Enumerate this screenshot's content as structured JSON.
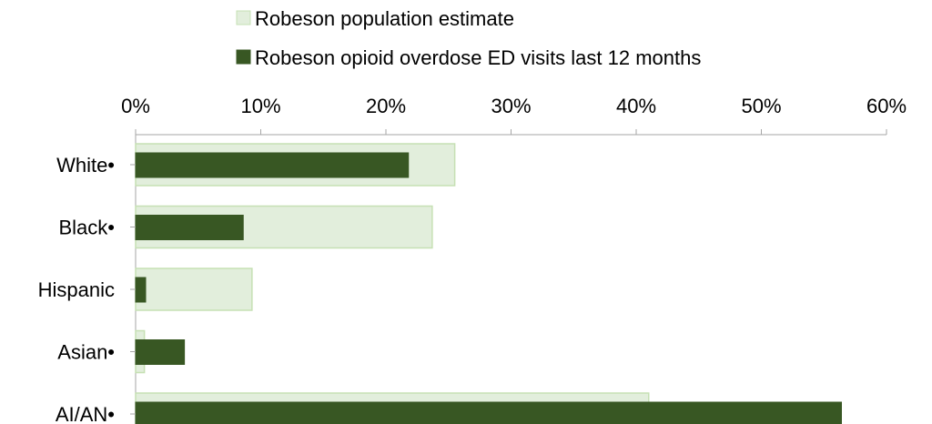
{
  "chart_data": {
    "type": "bar",
    "orientation": "horizontal",
    "categories": [
      "White•",
      "Black•",
      "Hispanic",
      "Asian•",
      "AI/AN•"
    ],
    "series": [
      {
        "name": "Robeson population estimate",
        "color": "#e2eedc",
        "stroke": "#c6e0b4",
        "values": [
          25.5,
          23.7,
          9.3,
          0.7,
          41.0
        ]
      },
      {
        "name": "Robeson opioid overdose ED visits last 12 months",
        "color": "#385723",
        "stroke": "#385723",
        "values": [
          21.8,
          8.6,
          0.8,
          3.9,
          56.4
        ]
      }
    ],
    "xlim": [
      0,
      60
    ],
    "xticks": [
      "0%",
      "10%",
      "20%",
      "30%",
      "40%",
      "50%",
      "60%"
    ],
    "xtick_values": [
      0,
      10,
      20,
      30,
      40,
      50,
      60
    ],
    "axis_position": "top",
    "legend": "top",
    "grid": false
  }
}
